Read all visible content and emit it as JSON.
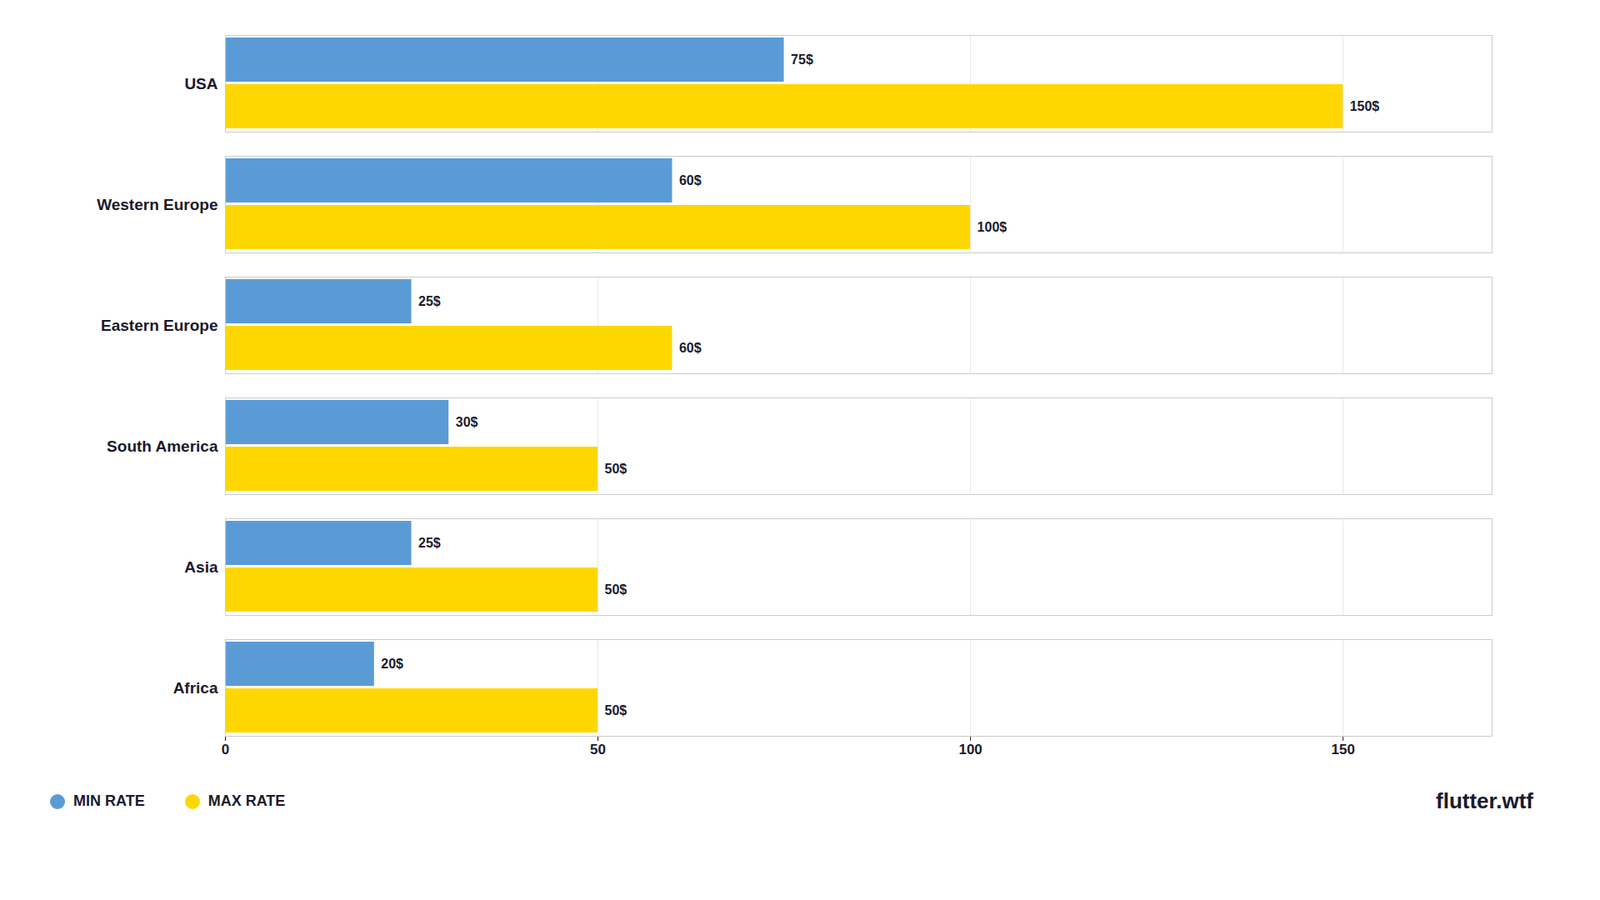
{
  "chart_data": {
    "type": "bar",
    "orientation": "horizontal",
    "categories": [
      "USA",
      "Western Europe",
      "Eastern Europe",
      "South America",
      "Asia",
      "Africa"
    ],
    "series": [
      {
        "name": "MIN RATE",
        "color": "#5B9BD5",
        "values": [
          75,
          60,
          25,
          30,
          25,
          20
        ],
        "value_labels": [
          "75$",
          "60$",
          "25$",
          "30$",
          "25$",
          "20$"
        ]
      },
      {
        "name": "MAX RATE",
        "color": "#FFD700",
        "values": [
          150,
          100,
          60,
          50,
          50,
          50
        ],
        "value_labels": [
          "150$",
          "100$",
          "60$",
          "50$",
          "50$",
          "50$"
        ]
      }
    ],
    "xlim": [
      0,
      170
    ],
    "xticks": [
      0,
      50,
      100,
      150
    ],
    "grid": true,
    "legend": "lower left",
    "data_labels": true,
    "annotations": [
      "flutter.wtf"
    ]
  }
}
